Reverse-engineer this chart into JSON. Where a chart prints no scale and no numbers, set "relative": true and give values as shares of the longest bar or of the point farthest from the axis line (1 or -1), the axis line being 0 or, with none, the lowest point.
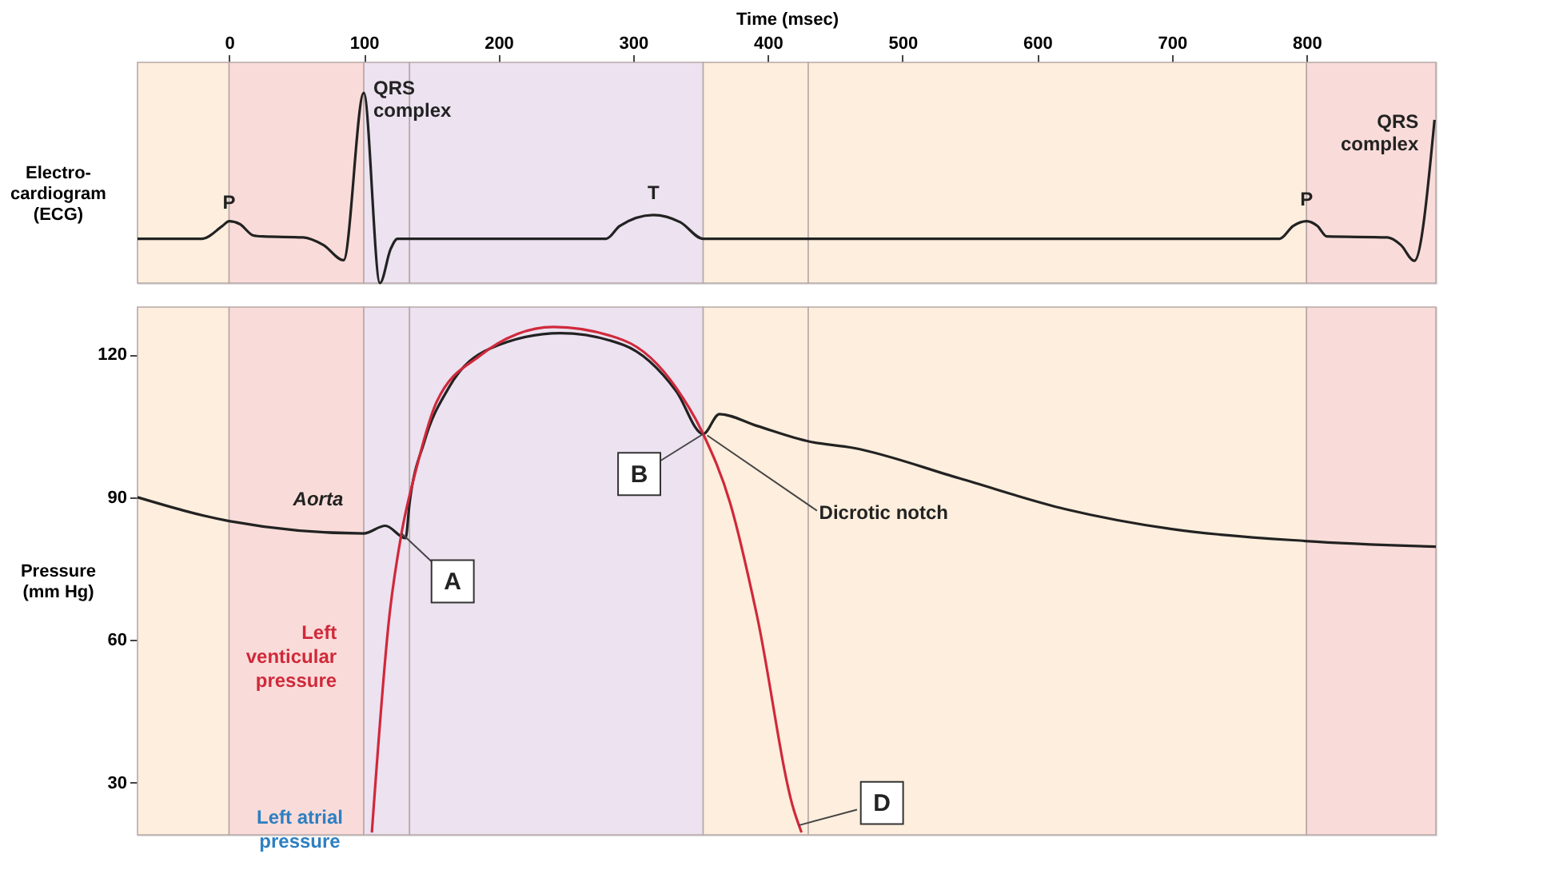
{
  "chart_data": [
    {
      "type": "line",
      "relative": true,
      "xlabel": "Time (msec)",
      "ylabel": "Electro-\ncardiogram\n(ECG)",
      "xlim": [
        -68,
        896
      ],
      "xticks": [
        0,
        100,
        200,
        300,
        400,
        500,
        600,
        700,
        800
      ],
      "tick_labels": "x",
      "x": [
        -68,
        -20,
        -5,
        0,
        8,
        18,
        25,
        55,
        70,
        85,
        100,
        112,
        120,
        125,
        280,
        290,
        315,
        335,
        352,
        780,
        790,
        800,
        808,
        815,
        860,
        870,
        880,
        895
      ],
      "series": [
        {
          "color": "#222222",
          "values": [
            0.233,
            0.233,
            0.3,
            0.325,
            0.31,
            0.25,
            0.245,
            0.24,
            0.2,
            0.12,
            1.0,
            0.0,
            0.18,
            0.233,
            0.233,
            0.3,
            0.358,
            0.32,
            0.233,
            0.233,
            0.3,
            0.325,
            0.3,
            0.245,
            0.24,
            0.2,
            0.117,
            0.858
          ]
        }
      ],
      "bands": [
        {
          "axis": "x",
          "from": -68,
          "to": 0,
          "color": "#fdeedd"
        },
        {
          "axis": "x",
          "from": 0,
          "to": 100,
          "color": "#f9dcd9"
        },
        {
          "axis": "x",
          "from": 100,
          "to": 134,
          "color": "#ece2f0"
        },
        {
          "axis": "x",
          "from": 134,
          "to": 352,
          "color": "#ece2f0"
        },
        {
          "axis": "x",
          "from": 352,
          "to": 430,
          "color": "#fdeedd"
        },
        {
          "axis": "x",
          "from": 430,
          "to": 800,
          "color": "#fdeedd"
        },
        {
          "axis": "x",
          "from": 800,
          "to": 896,
          "color": "#f9dcd9"
        }
      ],
      "annotations": [
        {
          "text": "P",
          "x": 0,
          "y": 0.325
        },
        {
          "text": "QRS complex",
          "x": 100,
          "y": 1.0
        },
        {
          "text": "T",
          "x": 315,
          "y": 0.358
        },
        {
          "text": "P",
          "x": 800,
          "y": 0.325
        },
        {
          "text": "QRS complex",
          "x": 895,
          "y": 0.858
        }
      ]
    },
    {
      "type": "line",
      "ylabel": "Pressure\n(mm Hg)",
      "xlim": [
        -68,
        896
      ],
      "ylim": [
        19,
        130
      ],
      "yticks": [
        30,
        60,
        90,
        120
      ],
      "tick_labels": "y",
      "series": [
        {
          "name": "Aorta",
          "color": "#222222",
          "x": [
            -68,
            0,
            100,
            116,
            131,
            134,
            145,
            163,
            194,
            246,
            293,
            332,
            352,
            364,
            392,
            431,
            463,
            542,
            621,
            700,
            799,
            896
          ],
          "values": [
            90,
            85,
            82.4,
            84,
            81.4,
            88.8,
            101.7,
            113,
            121.3,
            124.5,
            122,
            112.3,
            103.3,
            107.5,
            105,
            101.7,
            100.4,
            94,
            87.5,
            83.3,
            80.8,
            79.6
          ]
        },
        {
          "name": "Left venticular pressure",
          "color": "#d0293b",
          "x": [
            106,
            119,
            128,
            139,
            154,
            186,
            241,
            293,
            332,
            352,
            372,
            392,
            419,
            425
          ],
          "values": [
            19.5,
            65,
            82.4,
            96,
            110,
            119.7,
            125.8,
            123,
            113,
            103.3,
            88.8,
            65,
            24.5,
            19.5
          ]
        }
      ],
      "bands": [
        {
          "axis": "x",
          "from": -68,
          "to": 0,
          "color": "#fdeedd"
        },
        {
          "axis": "x",
          "from": 0,
          "to": 100,
          "color": "#f9dcd9"
        },
        {
          "axis": "x",
          "from": 100,
          "to": 134,
          "color": "#ece2f0"
        },
        {
          "axis": "x",
          "from": 134,
          "to": 352,
          "color": "#ece2f0"
        },
        {
          "axis": "x",
          "from": 352,
          "to": 430,
          "color": "#fdeedd"
        },
        {
          "axis": "x",
          "from": 430,
          "to": 800,
          "color": "#fdeedd"
        },
        {
          "axis": "x",
          "from": 800,
          "to": 896,
          "color": "#f9dcd9"
        }
      ],
      "annotations": [
        {
          "text": "A",
          "x": 128,
          "y": 82.4
        },
        {
          "text": "B",
          "x": 352,
          "y": 103.3
        },
        {
          "text": "D",
          "x": 423,
          "y": 21
        },
        {
          "text": "Dicrotic notch",
          "x": 355,
          "y": 103
        },
        "Left atrial pressure"
      ]
    }
  ]
}
